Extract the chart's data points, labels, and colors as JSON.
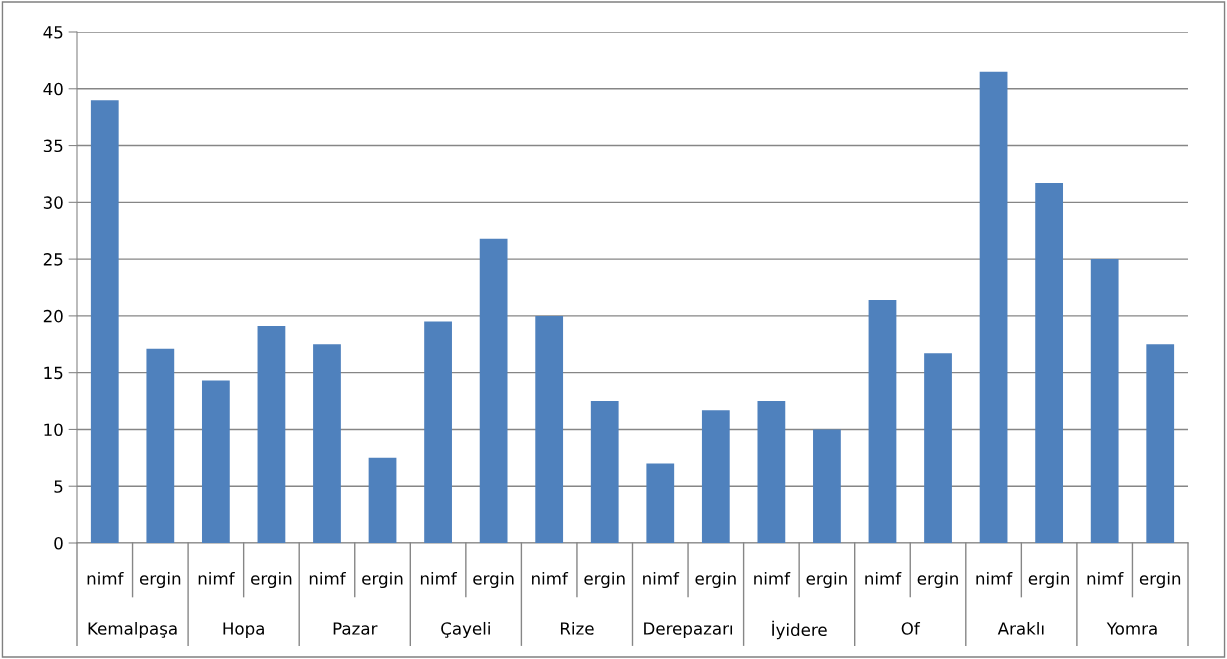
{
  "chart_data": {
    "type": "bar",
    "categories": [
      "nimf",
      "ergin",
      "nimf",
      "ergin",
      "nimf",
      "ergin",
      "nimf",
      "ergin",
      "nimf",
      "ergin",
      "nimf",
      "ergin",
      "nimf",
      "ergin",
      "nimf",
      "ergin",
      "nimf",
      "ergin",
      "nimf",
      "ergin"
    ],
    "values": [
      39,
      17.1,
      14.3,
      19.1,
      17.5,
      7.5,
      19.5,
      26.8,
      20,
      12.5,
      7,
      11.7,
      12.5,
      10,
      21.4,
      16.7,
      41.5,
      31.7,
      25,
      17.5
    ],
    "color": "#4f81bd",
    "annotations": [
      "Kemalpaşa",
      "Hopa",
      "Pazar",
      "Çayeli",
      "Rize",
      "Derepazarı",
      "İyidere",
      "Of",
      "Araklı",
      "Yomra"
    ],
    "ylim": [
      0,
      45
    ],
    "yticks": [
      0,
      5,
      10,
      15,
      20,
      25,
      30,
      35,
      40,
      45
    ],
    "grid": "y"
  }
}
